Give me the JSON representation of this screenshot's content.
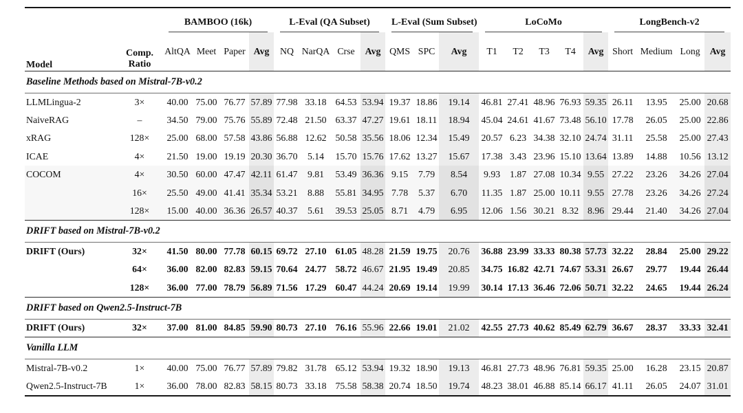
{
  "colors": {
    "avg_bg": "#ececec",
    "band_bg": "#f7f7f7",
    "band_avg_bg": "#e2e2e2",
    "text": "#111111"
  },
  "table": {
    "model_header": "Model",
    "ratio_header": "Comp.\nRatio",
    "groups": [
      {
        "label": "BAMBOO (16k)",
        "cols": [
          "AltQA",
          "Meet",
          "Paper",
          "Avg"
        ]
      },
      {
        "label": "L-Eval (QA Subset)",
        "cols": [
          "NQ",
          "NarQA",
          "Crse",
          "Avg"
        ]
      },
      {
        "label": "L-Eval (Sum Subset)",
        "cols": [
          "QMS",
          "SPC",
          "Avg"
        ]
      },
      {
        "label": "LoCoMo",
        "cols": [
          "T1",
          "T2",
          "T3",
          "T4",
          "Avg"
        ]
      },
      {
        "label": "LongBench-v2",
        "cols": [
          "Short",
          "Medium",
          "Long",
          "Avg"
        ]
      }
    ],
    "avg_col_indices": [
      3,
      7,
      10,
      15,
      19
    ],
    "sections": [
      {
        "title": "Baseline Methods based on Mistral-7B-v0.2",
        "rows": [
          {
            "model": "LLMLingua-2",
            "ratio": "3×",
            "bold": false,
            "band": false,
            "values": [
              "40.00",
              "75.00",
              "76.77",
              "57.89",
              "77.98",
              "33.18",
              "64.53",
              "53.94",
              "19.37",
              "18.86",
              "19.14",
              "46.81",
              "27.41",
              "48.96",
              "76.93",
              "59.35",
              "26.11",
              "13.95",
              "25.00",
              "20.68"
            ]
          },
          {
            "model": "NaiveRAG",
            "ratio": "–",
            "bold": false,
            "band": false,
            "values": [
              "34.50",
              "79.00",
              "75.76",
              "55.89",
              "72.48",
              "21.50",
              "63.37",
              "47.27",
              "19.61",
              "18.11",
              "18.94",
              "45.04",
              "24.61",
              "41.67",
              "73.48",
              "56.10",
              "17.78",
              "26.05",
              "25.00",
              "22.86"
            ]
          },
          {
            "model": "xRAG",
            "ratio": "128×",
            "bold": false,
            "band": false,
            "values": [
              "25.00",
              "68.00",
              "57.58",
              "43.86",
              "56.88",
              "12.62",
              "50.58",
              "35.56",
              "18.06",
              "12.34",
              "15.49",
              "20.57",
              "6.23",
              "34.38",
              "32.10",
              "24.74",
              "31.11",
              "25.58",
              "25.00",
              "27.43"
            ]
          },
          {
            "model": "ICAE",
            "ratio": "4×",
            "bold": false,
            "band": false,
            "values": [
              "21.50",
              "19.00",
              "19.19",
              "20.30",
              "36.70",
              "5.14",
              "15.70",
              "15.76",
              "17.62",
              "13.27",
              "15.67",
              "17.38",
              "3.43",
              "23.96",
              "15.10",
              "13.64",
              "13.89",
              "14.88",
              "10.56",
              "13.12"
            ]
          },
          {
            "model": "COCOM",
            "ratio": "4×",
            "bold": false,
            "band": true,
            "values": [
              "30.50",
              "60.00",
              "47.47",
              "42.11",
              "61.47",
              "9.81",
              "53.49",
              "36.36",
              "9.15",
              "7.79",
              "8.54",
              "9.93",
              "1.87",
              "27.08",
              "10.34",
              "9.55",
              "27.22",
              "23.26",
              "34.26",
              "27.04"
            ]
          },
          {
            "model": "",
            "ratio": "16×",
            "bold": false,
            "band": true,
            "values": [
              "25.50",
              "49.00",
              "41.41",
              "35.34",
              "53.21",
              "8.88",
              "55.81",
              "34.95",
              "7.78",
              "5.37",
              "6.70",
              "11.35",
              "1.87",
              "25.00",
              "10.11",
              "9.55",
              "27.78",
              "23.26",
              "34.26",
              "27.24"
            ]
          },
          {
            "model": "",
            "ratio": "128×",
            "bold": false,
            "band": true,
            "values": [
              "15.00",
              "40.00",
              "36.36",
              "26.57",
              "40.37",
              "5.61",
              "39.53",
              "25.05",
              "8.71",
              "4.79",
              "6.95",
              "12.06",
              "1.56",
              "30.21",
              "8.32",
              "8.96",
              "29.44",
              "21.40",
              "34.26",
              "27.04"
            ]
          }
        ]
      },
      {
        "title": "DRIFT based on Mistral-7B-v0.2",
        "rows": [
          {
            "model": "DRIFT (Ours)",
            "ratio": "32×",
            "bold": true,
            "band": false,
            "plain_cells": [
              7,
              10
            ],
            "values": [
              "41.50",
              "80.00",
              "77.78",
              "60.15",
              "69.72",
              "27.10",
              "61.05",
              "48.28",
              "21.59",
              "19.75",
              "20.76",
              "36.88",
              "23.99",
              "33.33",
              "80.38",
              "57.73",
              "32.22",
              "28.84",
              "25.00",
              "29.22"
            ]
          },
          {
            "model": "",
            "ratio": "64×",
            "bold": true,
            "band": false,
            "plain_cells": [
              7,
              10
            ],
            "values": [
              "36.00",
              "82.00",
              "82.83",
              "59.15",
              "70.64",
              "24.77",
              "58.72",
              "46.67",
              "21.95",
              "19.49",
              "20.85",
              "34.75",
              "16.82",
              "42.71",
              "74.67",
              "53.31",
              "26.67",
              "29.77",
              "19.44",
              "26.44"
            ]
          },
          {
            "model": "",
            "ratio": "128×",
            "bold": true,
            "band": false,
            "plain_cells": [
              7,
              10
            ],
            "values": [
              "36.00",
              "77.00",
              "78.79",
              "56.89",
              "71.56",
              "17.29",
              "60.47",
              "44.24",
              "20.69",
              "19.14",
              "19.99",
              "30.14",
              "17.13",
              "36.46",
              "72.06",
              "50.71",
              "32.22",
              "24.65",
              "19.44",
              "26.24"
            ]
          }
        ]
      },
      {
        "title": "DRIFT based on Qwen2.5-Instruct-7B",
        "rows": [
          {
            "model": "DRIFT (Ours)",
            "ratio": "32×",
            "bold": true,
            "band": false,
            "plain_cells": [
              7,
              10
            ],
            "values": [
              "37.00",
              "81.00",
              "84.85",
              "59.90",
              "80.73",
              "27.10",
              "76.16",
              "55.96",
              "22.66",
              "19.01",
              "21.02",
              "42.55",
              "27.73",
              "40.62",
              "85.49",
              "62.79",
              "36.67",
              "28.37",
              "33.33",
              "32.41"
            ]
          }
        ]
      },
      {
        "title": "Vanilla LLM",
        "rows": [
          {
            "model": "Mistral-7B-v0.2",
            "ratio": "1×",
            "bold": false,
            "band": false,
            "values": [
              "40.00",
              "75.00",
              "76.77",
              "57.89",
              "79.82",
              "31.78",
              "65.12",
              "53.94",
              "19.32",
              "18.90",
              "19.13",
              "46.81",
              "27.73",
              "48.96",
              "76.81",
              "59.35",
              "25.00",
              "16.28",
              "23.15",
              "20.87"
            ]
          },
          {
            "model": "Qwen2.5-Instruct-7B",
            "ratio": "1×",
            "bold": false,
            "band": false,
            "values": [
              "36.00",
              "78.00",
              "82.83",
              "58.15",
              "80.73",
              "33.18",
              "75.58",
              "58.38",
              "20.74",
              "18.50",
              "19.74",
              "48.23",
              "38.01",
              "46.88",
              "85.14",
              "66.17",
              "41.11",
              "26.05",
              "24.07",
              "31.01"
            ]
          }
        ]
      }
    ]
  }
}
